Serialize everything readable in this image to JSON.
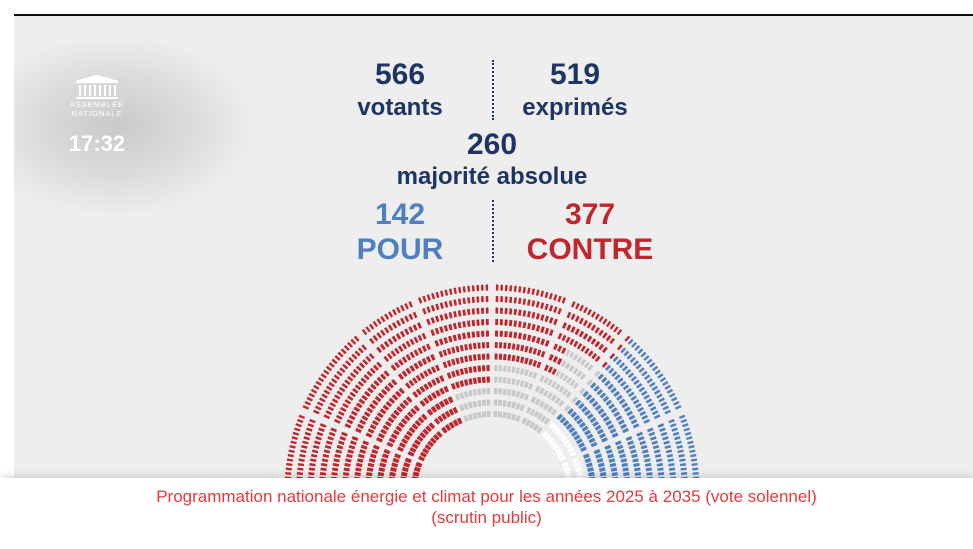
{
  "logo": {
    "line1": "ASSEMBLÉE",
    "line2": "NATIONALE",
    "icon": "parliament-building-icon"
  },
  "clock": "17:32",
  "results": {
    "votants": {
      "value": "566",
      "label": "votants"
    },
    "exprimes": {
      "value": "519",
      "label": "exprimés"
    },
    "majorite": {
      "value": "260",
      "label": "majorité absolue"
    },
    "pour": {
      "value": "142",
      "label": "POUR"
    },
    "contre": {
      "value": "377",
      "label": "CONTRE"
    }
  },
  "colors": {
    "pour": "#4f7fbf",
    "contre": "#c0262d",
    "abstention": "#c8c8c8",
    "absent": "#ffffff",
    "navy": "#1e3563",
    "banner_text": "#e03a3e"
  },
  "banner": {
    "title": "Programmation nationale énergie et climat pour les années 2025 à 2035 (vote solennel)",
    "subtitle": "(scrutin public)"
  }
}
